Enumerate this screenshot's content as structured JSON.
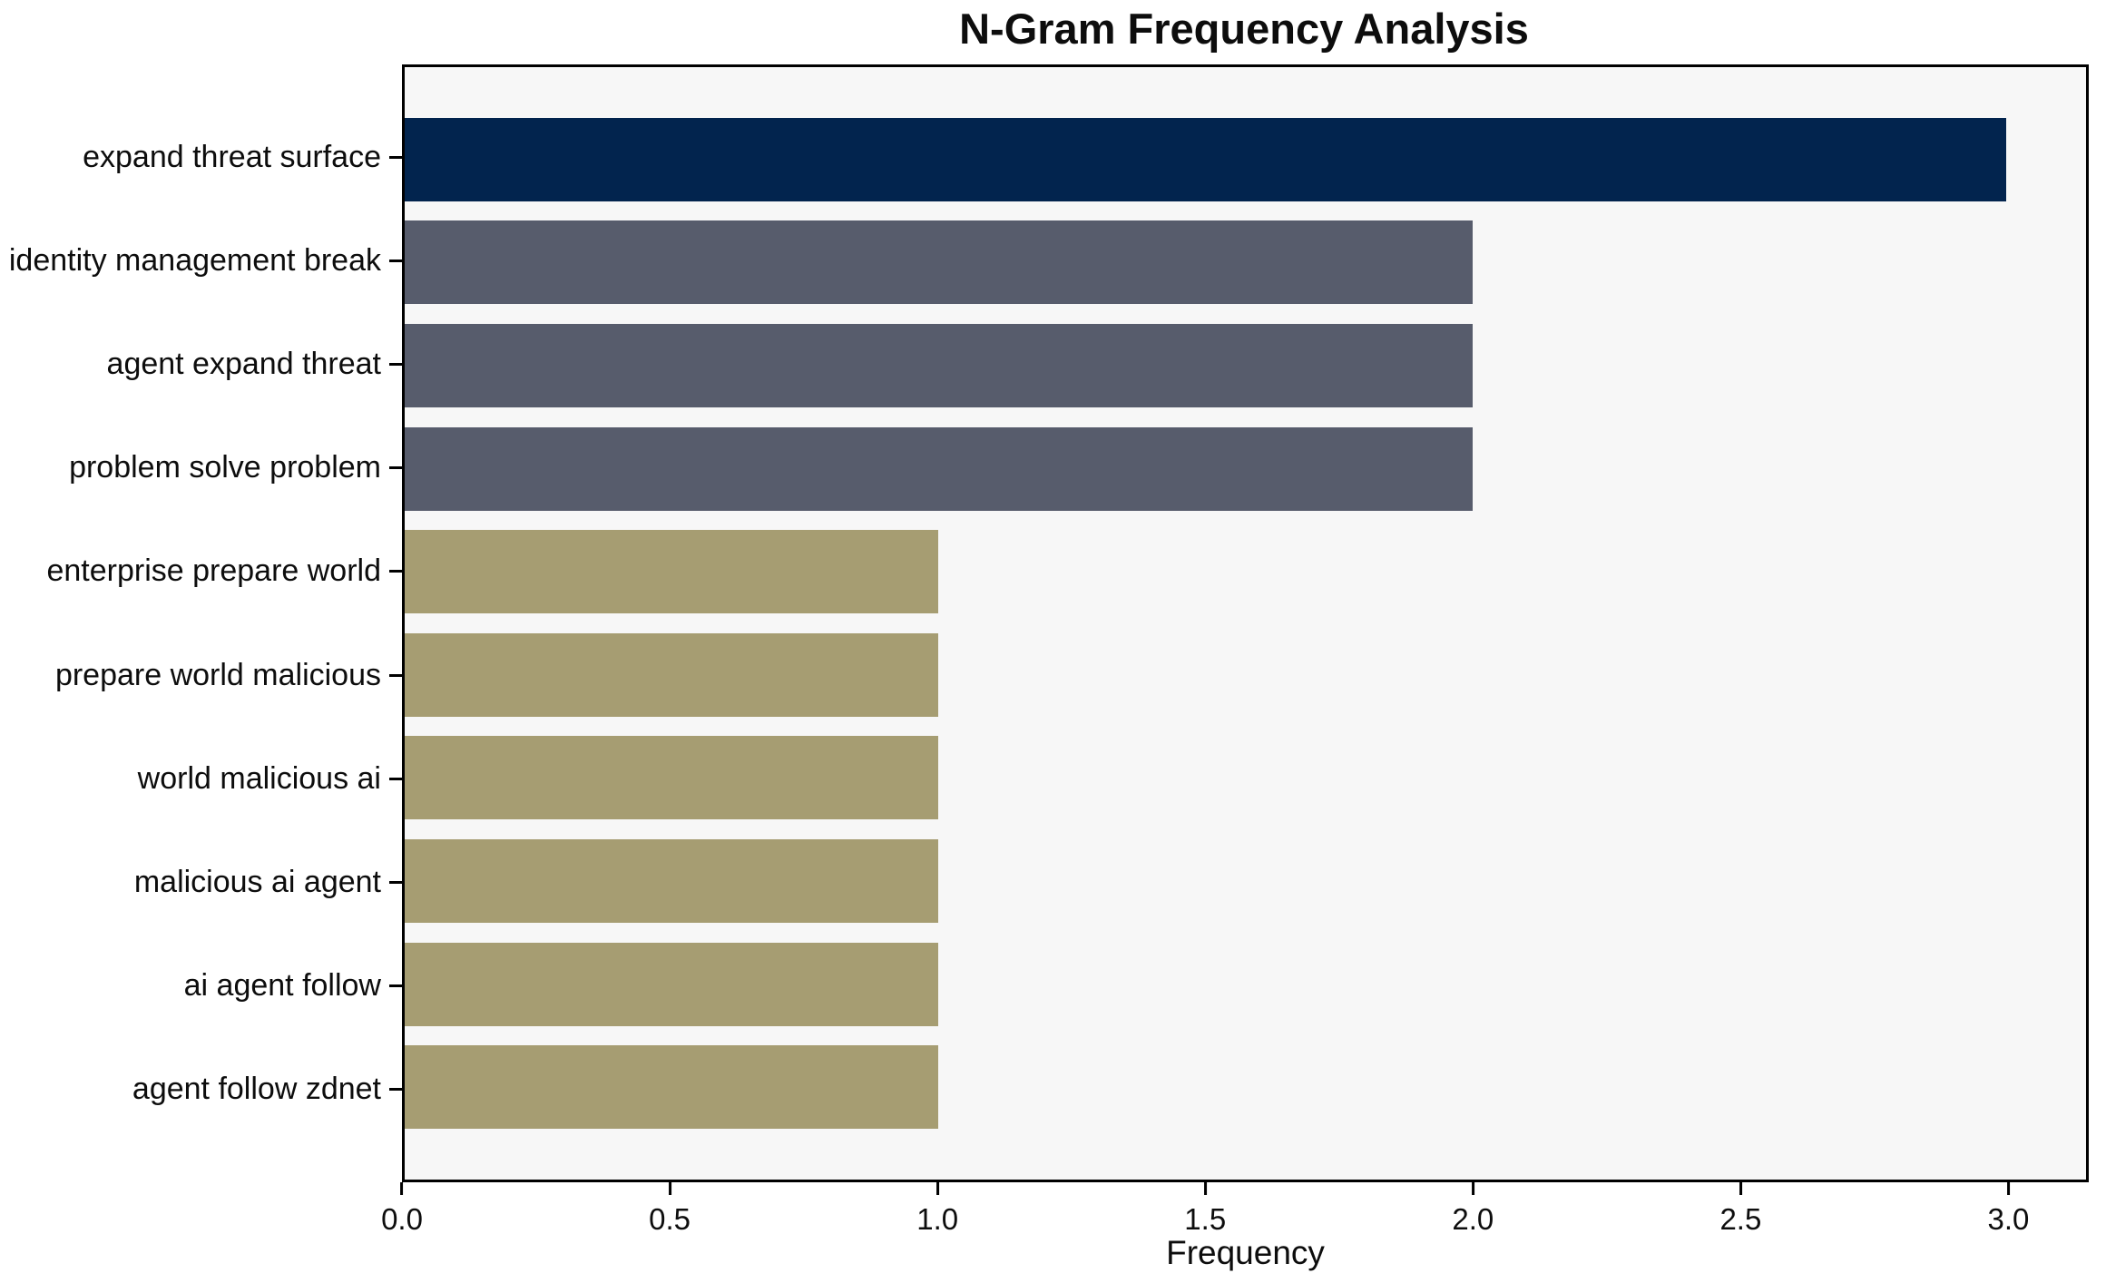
{
  "title": "N-Gram Frequency Analysis",
  "chart_data": {
    "type": "bar",
    "orientation": "horizontal",
    "title": "N-Gram Frequency Analysis",
    "xlabel": "Frequency",
    "ylabel": "",
    "categories": [
      "expand threat surface",
      "identity management break",
      "agent expand threat",
      "problem solve problem",
      "enterprise prepare world",
      "prepare world malicious",
      "world malicious ai",
      "malicious ai agent",
      "ai agent follow",
      "agent follow zdnet"
    ],
    "values": [
      3,
      2,
      2,
      2,
      1,
      1,
      1,
      1,
      1,
      1
    ],
    "bar_colors": [
      "#02244e",
      "#575c6c",
      "#575c6c",
      "#575c6c",
      "#a69d72",
      "#a69d72",
      "#a69d72",
      "#a69d72",
      "#a69d72",
      "#a69d72"
    ],
    "color_legend": {
      "frequency_3": "#02244e",
      "frequency_2": "#575c6c",
      "frequency_1": "#a69d72"
    },
    "xlim": [
      0,
      3.15
    ],
    "x_ticks": [
      0.0,
      0.5,
      1.0,
      1.5,
      2.0,
      2.5,
      3.0
    ],
    "x_tick_labels": [
      "0.0",
      "0.5",
      "1.0",
      "1.5",
      "2.0",
      "2.5",
      "3.0"
    ],
    "grid": false,
    "legend_position": "none",
    "plot_background": "#f7f7f7",
    "figure_background": "#ffffff"
  }
}
